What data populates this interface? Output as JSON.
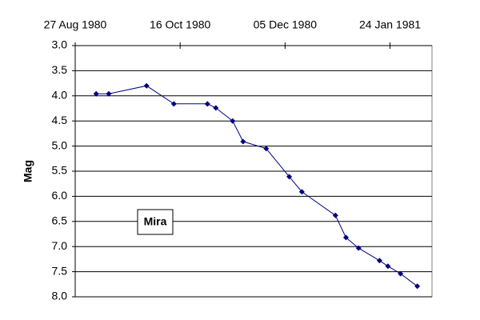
{
  "chart_data": {
    "type": "line",
    "y_label": "Mag",
    "annotation": "Mira",
    "x": [
      "1980-09-06",
      "1980-09-12",
      "1980-09-30",
      "1980-10-13",
      "1980-10-29",
      "1980-11-02",
      "1980-11-10",
      "1980-11-15",
      "1980-11-26",
      "1980-12-07",
      "1980-12-13",
      "1980-12-29",
      "1981-01-03",
      "1981-01-09",
      "1981-01-19",
      "1981-01-23",
      "1981-01-29",
      "1981-02-06"
    ],
    "series": [
      {
        "color": "#000080",
        "values": [
          3.96,
          3.96,
          3.8,
          4.16,
          4.16,
          4.24,
          4.5,
          4.91,
          5.05,
          5.61,
          5.91,
          6.38,
          6.82,
          7.03,
          7.28,
          7.39,
          7.54,
          7.79
        ]
      }
    ],
    "xlim": [
      "1980-08-27",
      "1981-02-13"
    ],
    "xticks": [
      {
        "value": "1980-08-27",
        "label": "27 Aug 1980"
      },
      {
        "value": "1980-10-16",
        "label": "16 Oct 1980"
      },
      {
        "value": "1980-12-05",
        "label": "05 Dec 1980"
      },
      {
        "value": "1981-01-24",
        "label": "24 Jan 1981"
      }
    ],
    "ylim": [
      3,
      8
    ],
    "y_reversed": true,
    "yticks": [
      {
        "value": 3,
        "label": "3.0"
      },
      {
        "value": 3.5,
        "label": "3.5"
      },
      {
        "value": 4,
        "label": "4.0"
      },
      {
        "value": 4.5,
        "label": "4.5"
      },
      {
        "value": 5,
        "label": "5.0"
      },
      {
        "value": 5.5,
        "label": "5.5"
      },
      {
        "value": 6,
        "label": "6.0"
      },
      {
        "value": 6.5,
        "label": "6.5"
      },
      {
        "value": 7,
        "label": "7.0"
      },
      {
        "value": 7.5,
        "label": "7.5"
      },
      {
        "value": 8,
        "label": "8.0"
      }
    ],
    "grid": true
  }
}
